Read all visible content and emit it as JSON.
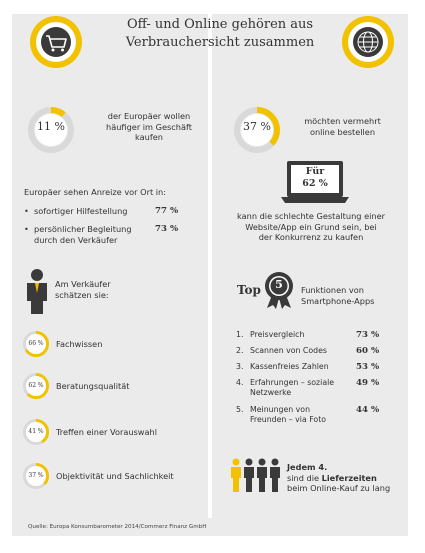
{
  "title_line1": "Off- und Online gehören aus",
  "title_line2": "Verbrauchersicht zusammen",
  "colors": {
    "accent": "#f2c200",
    "panel": "#ebebeb",
    "ring_bg": "#d9d9d9",
    "dark": "#3a3a3a"
  },
  "icons": {
    "left_header": "shopping-cart-icon",
    "right_header": "globe-icon",
    "award": "award-badge-icon",
    "laptop": "laptop-icon",
    "person": "person-icon",
    "people": "people-icon"
  },
  "left": {
    "stat": {
      "value": 11,
      "label": "11 %",
      "text1": "der Europäer wollen",
      "text2": "häufiger im Geschäft",
      "text3": "kaufen"
    },
    "incentives_title": "Europäer sehen Anreize vor Ort in:",
    "incentives": [
      {
        "bullet": "•",
        "text1": "sofortiger Hilfestellung",
        "text2": "",
        "value": "77 %"
      },
      {
        "bullet": "•",
        "text1": "persönlicher Begleitung",
        "text2": "durch den Verkäufer",
        "value": "73 %"
      }
    ],
    "seller_text1": "Am Verkäufer",
    "seller_text2": "schätzen sie:",
    "seller_items": [
      {
        "value": 66,
        "label": "66 %",
        "text": "Fachwissen"
      },
      {
        "value": 62,
        "label": "62 %",
        "text": "Beratungsqualität"
      },
      {
        "value": 41,
        "label": "41 %",
        "text": "Treffen einer Vorauswahl"
      },
      {
        "value": 37,
        "label": "37 %",
        "text": "Objektivität und Sachlichkeit"
      }
    ]
  },
  "right": {
    "stat": {
      "value": 37,
      "label": "37 %",
      "text1": "möchten vermehrt",
      "text2": "online bestellen"
    },
    "laptop_line1": "Für",
    "laptop_line2": "62 %",
    "laptop_text1": "kann die schlechte Gestaltung einer",
    "laptop_text2": "Website/App ein Grund sein, bei",
    "laptop_text3": "der Konkurrenz zu kaufen",
    "top_label": "Top",
    "top_number": "5",
    "top_text1": "Funktionen von",
    "top_text2": "Smartphone-Apps",
    "functions": [
      {
        "num": "1.",
        "text1": "Preisvergleich",
        "text2": "",
        "value": "73 %"
      },
      {
        "num": "2.",
        "text1": "Scannen von Codes",
        "text2": "",
        "value": "60 %"
      },
      {
        "num": "3.",
        "text1": "Kassenfreies Zahlen",
        "text2": "",
        "value": "53 %"
      },
      {
        "num": "4.",
        "text1": "Erfahrungen – soziale",
        "text2": "Netzwerke",
        "value": "49 %"
      },
      {
        "num": "5.",
        "text1": "Meinungen von",
        "text2": "Freunden – via Foto",
        "value": "44 %"
      }
    ],
    "delivery_text1": "Jedem 4.",
    "delivery_text2a": "sind die ",
    "delivery_text2b": "Lieferzeiten",
    "delivery_text3": "beim Online-Kauf zu lang"
  },
  "footer": "Quelle: Europa Konsumbarometer 2014/Commerz Finanz GmbH",
  "chart_data": [
    {
      "type": "pie",
      "categories": [
        "der Europäer wollen häufiger im Geschäft kaufen"
      ],
      "values": [
        11
      ]
    },
    {
      "type": "pie",
      "categories": [
        "möchten vermehrt online bestellen"
      ],
      "values": [
        37
      ]
    },
    {
      "type": "bar",
      "title": "Am Verkäufer schätzen sie:",
      "categories": [
        "Fachwissen",
        "Beratungsqualität",
        "Treffen einer Vorauswahl",
        "Objektivität und Sachlichkeit"
      ],
      "values": [
        66,
        62,
        41,
        37
      ]
    },
    {
      "type": "table",
      "title": "Europäer sehen Anreize vor Ort in:",
      "categories": [
        "sofortiger Hilfestellung",
        "persönlicher Begleitung durch den Verkäufer"
      ],
      "values": [
        77,
        73
      ]
    },
    {
      "type": "bar",
      "title": "Funktionen von Smartphone-Apps",
      "categories": [
        "Preisvergleich",
        "Scannen von Codes",
        "Kassenfreies Zahlen",
        "Erfahrungen – soziale Netzwerke",
        "Meinungen von Freunden – via Foto"
      ],
      "values": [
        73,
        60,
        53,
        49,
        44
      ]
    }
  ]
}
